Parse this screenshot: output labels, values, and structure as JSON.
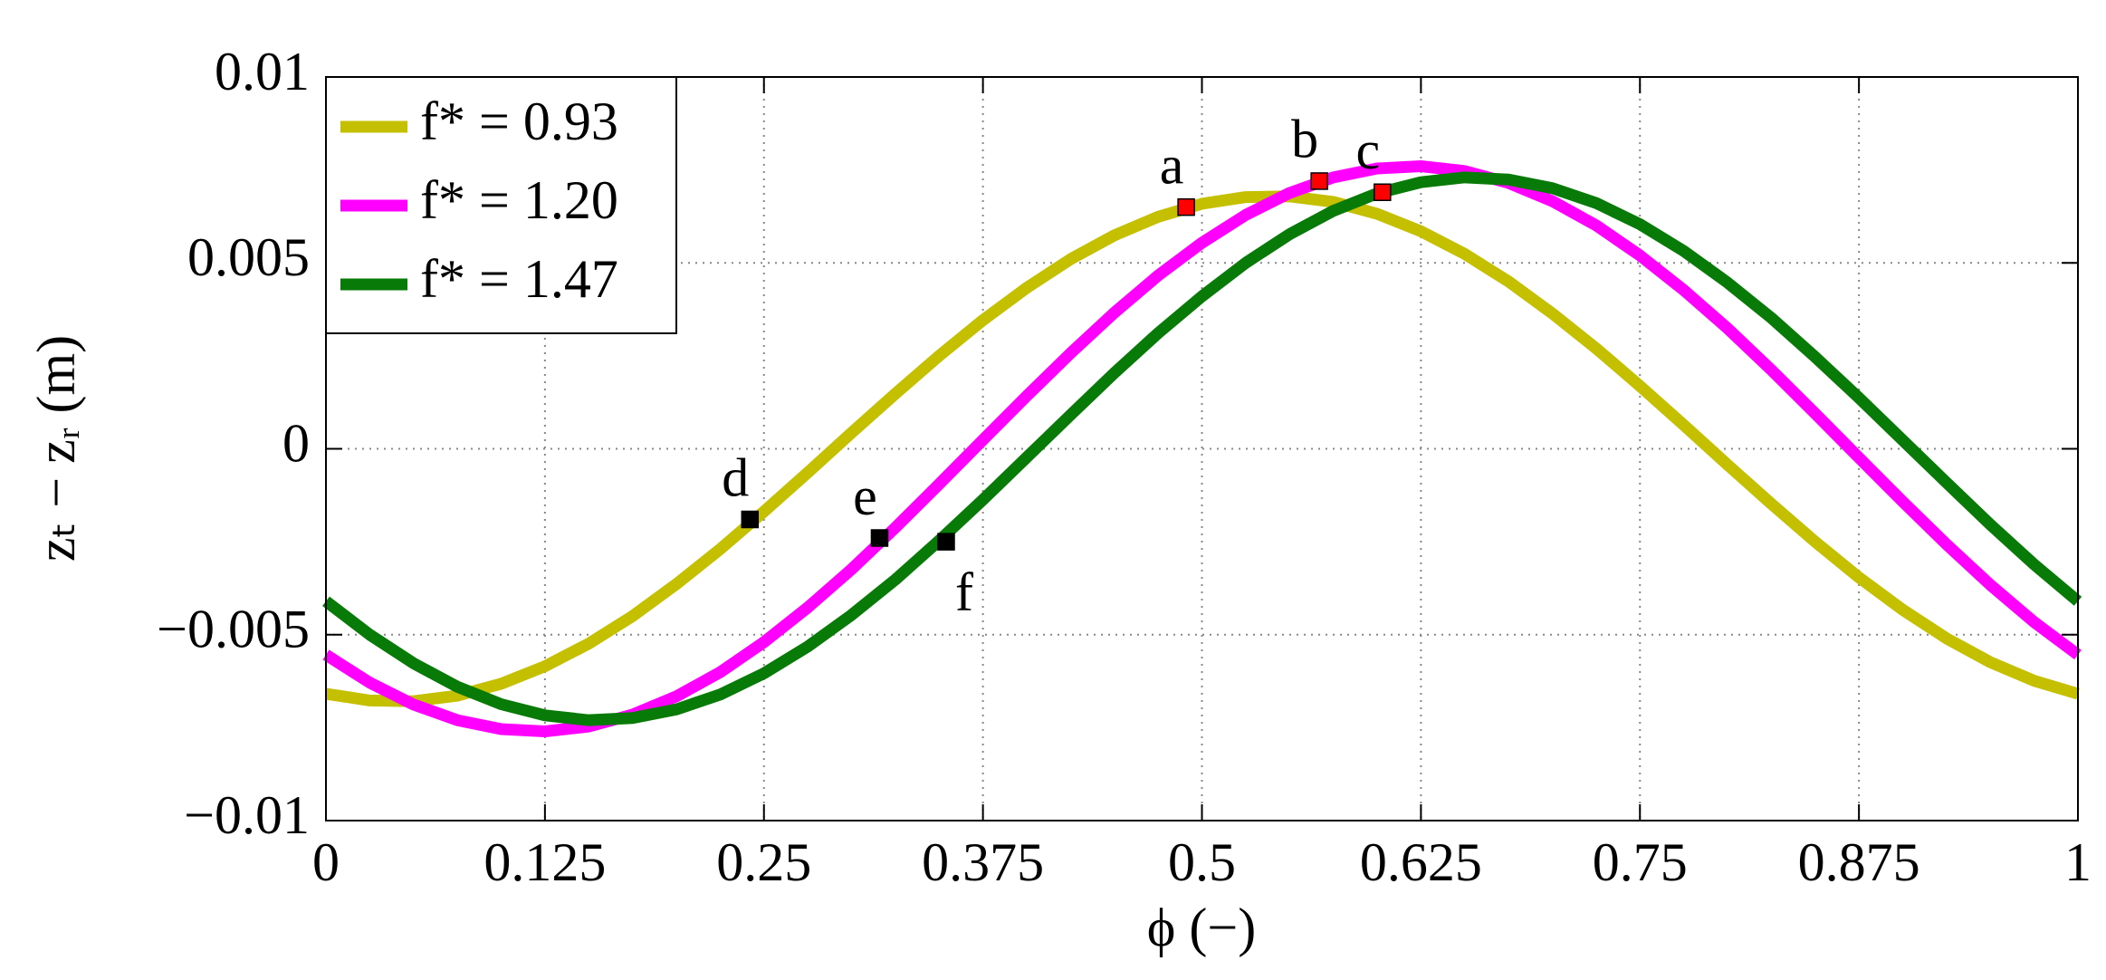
{
  "chart_data": {
    "type": "line",
    "x_label": "ϕ (−)",
    "y_label": "zₜ − zᵣ (m)",
    "x": [
      0,
      0.025,
      0.05,
      0.075,
      0.1,
      0.125,
      0.15,
      0.175,
      0.2,
      0.225,
      0.25,
      0.275,
      0.3,
      0.325,
      0.35,
      0.375,
      0.4,
      0.425,
      0.45,
      0.475,
      0.5,
      0.525,
      0.55,
      0.575,
      0.6,
      0.625,
      0.65,
      0.675,
      0.7,
      0.725,
      0.75,
      0.775,
      0.8,
      0.825,
      0.85,
      0.875,
      0.9,
      0.925,
      0.95,
      0.975,
      1
    ],
    "series": [
      {
        "name": "f* = 0.93",
        "color": "#c4c000",
        "values": [
          -0.00659,
          -0.00677,
          -0.00679,
          -0.00664,
          -0.00632,
          -0.00585,
          -0.00524,
          -0.0045,
          -0.00364,
          -0.0027,
          -0.00169,
          -0.00064,
          0.00043,
          0.00148,
          0.0025,
          0.00346,
          0.00433,
          0.0051,
          0.00574,
          0.00624,
          0.00659,
          0.00677,
          0.00679,
          0.00664,
          0.00632,
          0.00585,
          0.00524,
          0.0045,
          0.00364,
          0.0027,
          0.00169,
          0.00064,
          -0.00043,
          -0.00148,
          -0.0025,
          -0.00346,
          -0.00433,
          -0.0051,
          -0.00574,
          -0.00624,
          -0.00659
        ]
      },
      {
        "name": "f* = 1.20",
        "color": "#ff00ff",
        "values": [
          -0.00554,
          -0.00629,
          -0.00688,
          -0.0073,
          -0.00754,
          -0.0076,
          -0.00747,
          -0.00715,
          -0.00666,
          -0.00601,
          -0.0052,
          -0.00427,
          -0.00324,
          -0.00212,
          -0.00095,
          0.00024,
          0.00142,
          0.00257,
          0.00366,
          0.00466,
          0.00554,
          0.00629,
          0.00688,
          0.0073,
          0.00754,
          0.0076,
          0.00747,
          0.00715,
          0.00666,
          0.00601,
          0.0052,
          0.00427,
          0.00324,
          0.00212,
          0.00095,
          -0.00024,
          -0.00142,
          -0.00257,
          -0.00366,
          -0.00466,
          -0.00554
        ]
      },
      {
        "name": "f* = 1.47",
        "color": "#077a07",
        "values": [
          -0.0041,
          -0.005,
          -0.00577,
          -0.0064,
          -0.00687,
          -0.00717,
          -0.0073,
          -0.00724,
          -0.00701,
          -0.00661,
          -0.00604,
          -0.00532,
          -0.00447,
          -0.00352,
          -0.00247,
          -0.00137,
          -0.00023,
          0.00091,
          0.00204,
          0.00311,
          0.0041,
          0.005,
          0.00577,
          0.0064,
          0.00687,
          0.00717,
          0.0073,
          0.00724,
          0.00701,
          0.00661,
          0.00604,
          0.00532,
          0.00447,
          0.00352,
          0.00247,
          0.00137,
          0.00023,
          -0.00091,
          -0.00204,
          -0.00311,
          -0.0041
        ]
      }
    ],
    "annotations": [
      {
        "label": "a",
        "x": 0.491,
        "y": 0.0065,
        "color": "#ff0000"
      },
      {
        "label": "b",
        "x": 0.567,
        "y": 0.0072,
        "color": "#ff0000"
      },
      {
        "label": "c",
        "x": 0.603,
        "y": 0.0069,
        "color": "#ff0000"
      },
      {
        "label": "d",
        "x": 0.242,
        "y": -0.0019,
        "color": "#000000"
      },
      {
        "label": "e",
        "x": 0.316,
        "y": -0.0024,
        "color": "#000000"
      },
      {
        "label": "f",
        "x": 0.354,
        "y": -0.0025,
        "color": "#000000"
      }
    ],
    "xlim": [
      0,
      1
    ],
    "ylim": [
      -0.01,
      0.01
    ],
    "xticks": [
      0,
      0.125,
      0.25,
      0.375,
      0.5,
      0.625,
      0.75,
      0.875,
      1
    ],
    "yticks": [
      {
        "value": -0.01,
        "label": "−0.01"
      },
      {
        "value": -0.005,
        "label": "−0.005"
      },
      0,
      0.005,
      0.01
    ],
    "grid": true,
    "legend": "upper-left"
  }
}
